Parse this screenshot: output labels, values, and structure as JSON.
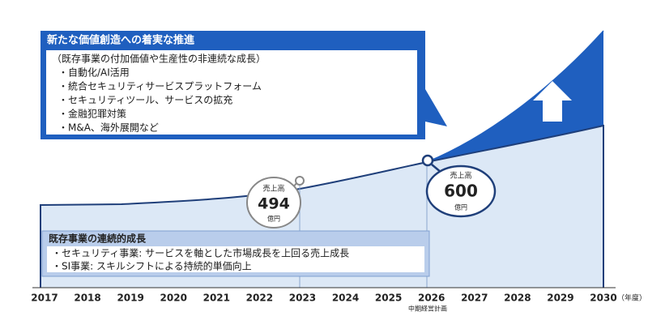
{
  "top_box": {
    "title": "新たな価値創造への着実な推進",
    "subtitle": "（既存事業の付加価値や生産性の非連続な成長）",
    "items": [
      "・自動化/AI活用",
      "・統合セキュリティサービスプラットフォーム",
      "・セキュリティツール、サービスの拡充",
      "・金融犯罪対策",
      "・M&A、海外展開など"
    ]
  },
  "bottom_box": {
    "title": "既存事業の連続的成長",
    "items": [
      "・セキュリティ事業: サービスを軸とした市場成長を上回る売上成長",
      "・SI事業: スキルシフトによる持続的単価向上"
    ]
  },
  "callouts": [
    {
      "label": "売上高",
      "value": "494",
      "unit": "億円"
    },
    {
      "label": "売上高",
      "value": "600",
      "unit": "億円"
    }
  ],
  "years": [
    "2017",
    "2018",
    "2019",
    "2020",
    "2021",
    "2022",
    "2023",
    "2024",
    "2025",
    "2026",
    "2027",
    "2028",
    "2029",
    "2030"
  ],
  "year_unit": "（年度）",
  "plan_note": "中期経営計画"
}
